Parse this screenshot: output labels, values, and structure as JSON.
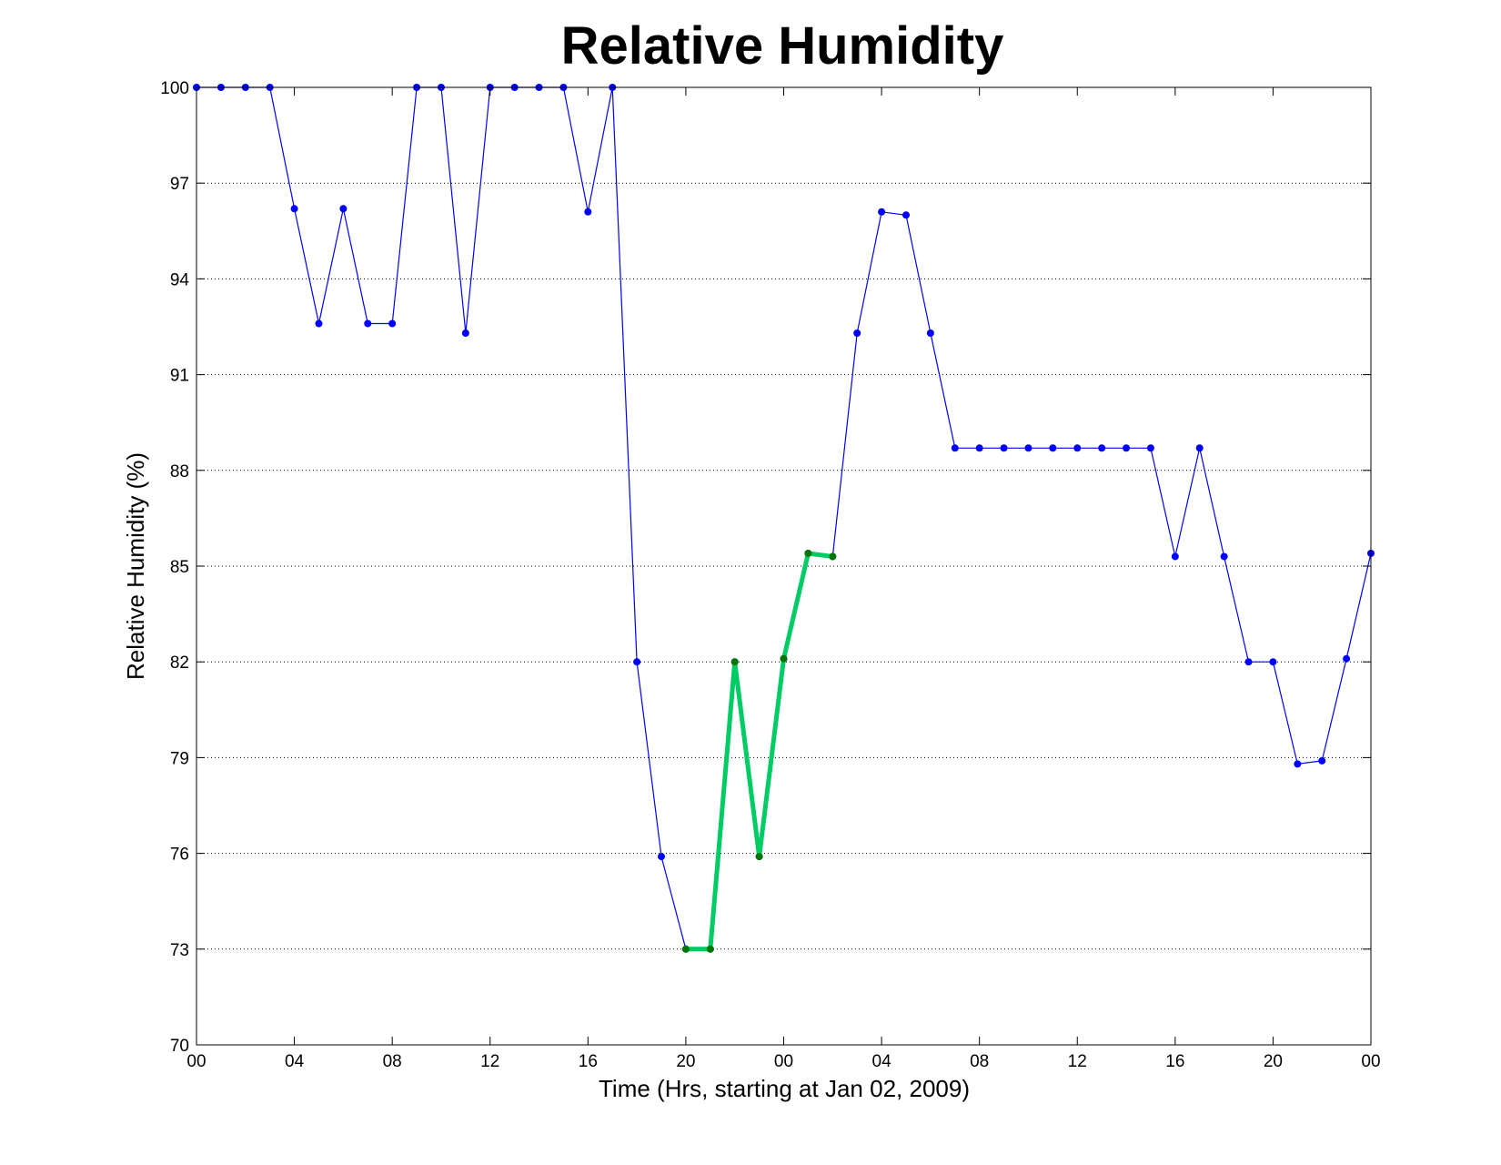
{
  "chart_data": {
    "type": "line",
    "title": "Relative Humidity",
    "xlabel": "Time (Hrs, starting at Jan 02, 2009)",
    "ylabel": "Relative Humidity (%)",
    "ylim": [
      70,
      100
    ],
    "y_ticks": [
      70,
      73,
      76,
      79,
      82,
      85,
      88,
      91,
      94,
      97,
      100
    ],
    "y_tick_labels": [
      "70",
      "73",
      "76",
      "79",
      "82",
      "85",
      "88",
      "91",
      "94",
      "97",
      "100"
    ],
    "x_ticks": [
      0,
      4,
      8,
      12,
      16,
      20,
      24,
      28,
      32,
      36,
      40,
      44,
      48
    ],
    "x_tick_labels": [
      "00",
      "04",
      "08",
      "12",
      "16",
      "20",
      "00",
      "04",
      "08",
      "12",
      "16",
      "20",
      "00"
    ],
    "xlim": [
      0,
      48
    ],
    "grid": "horizontal dotted",
    "series": [
      {
        "color": "#0000ff",
        "line_width": "thin",
        "marker": "dot",
        "x": [
          0,
          1,
          2,
          3,
          4,
          5,
          6,
          7,
          8,
          9,
          10,
          11,
          12,
          13,
          14,
          15,
          16,
          17,
          18,
          19,
          20,
          21,
          22,
          23,
          24,
          25,
          26,
          27,
          28,
          29,
          30,
          31,
          32,
          33,
          34,
          35,
          36,
          37,
          38,
          39,
          40,
          41,
          42,
          43,
          44,
          45,
          46,
          47,
          48
        ],
        "values": [
          100,
          100,
          100,
          100,
          96.2,
          92.6,
          96.2,
          92.6,
          92.6,
          100,
          100,
          92.3,
          100,
          100,
          100,
          100,
          96.1,
          100,
          82,
          75.9,
          73,
          73,
          82,
          75.9,
          82.1,
          85.4,
          85.3,
          92.3,
          96.1,
          96,
          92.3,
          88.7,
          88.7,
          88.7,
          88.7,
          88.7,
          88.7,
          88.7,
          88.7,
          88.7,
          85.3,
          88.7,
          85.3,
          82,
          82,
          78.8,
          78.9,
          82.1,
          85.4
        ]
      },
      {
        "color": "#00cc66",
        "marker_color": "#007700",
        "line_width": "thick",
        "marker": "dot",
        "x": [
          20,
          21,
          22,
          23,
          24,
          25,
          26
        ],
        "values": [
          73,
          73,
          82,
          75.9,
          82.1,
          85.4,
          85.3
        ]
      }
    ]
  }
}
